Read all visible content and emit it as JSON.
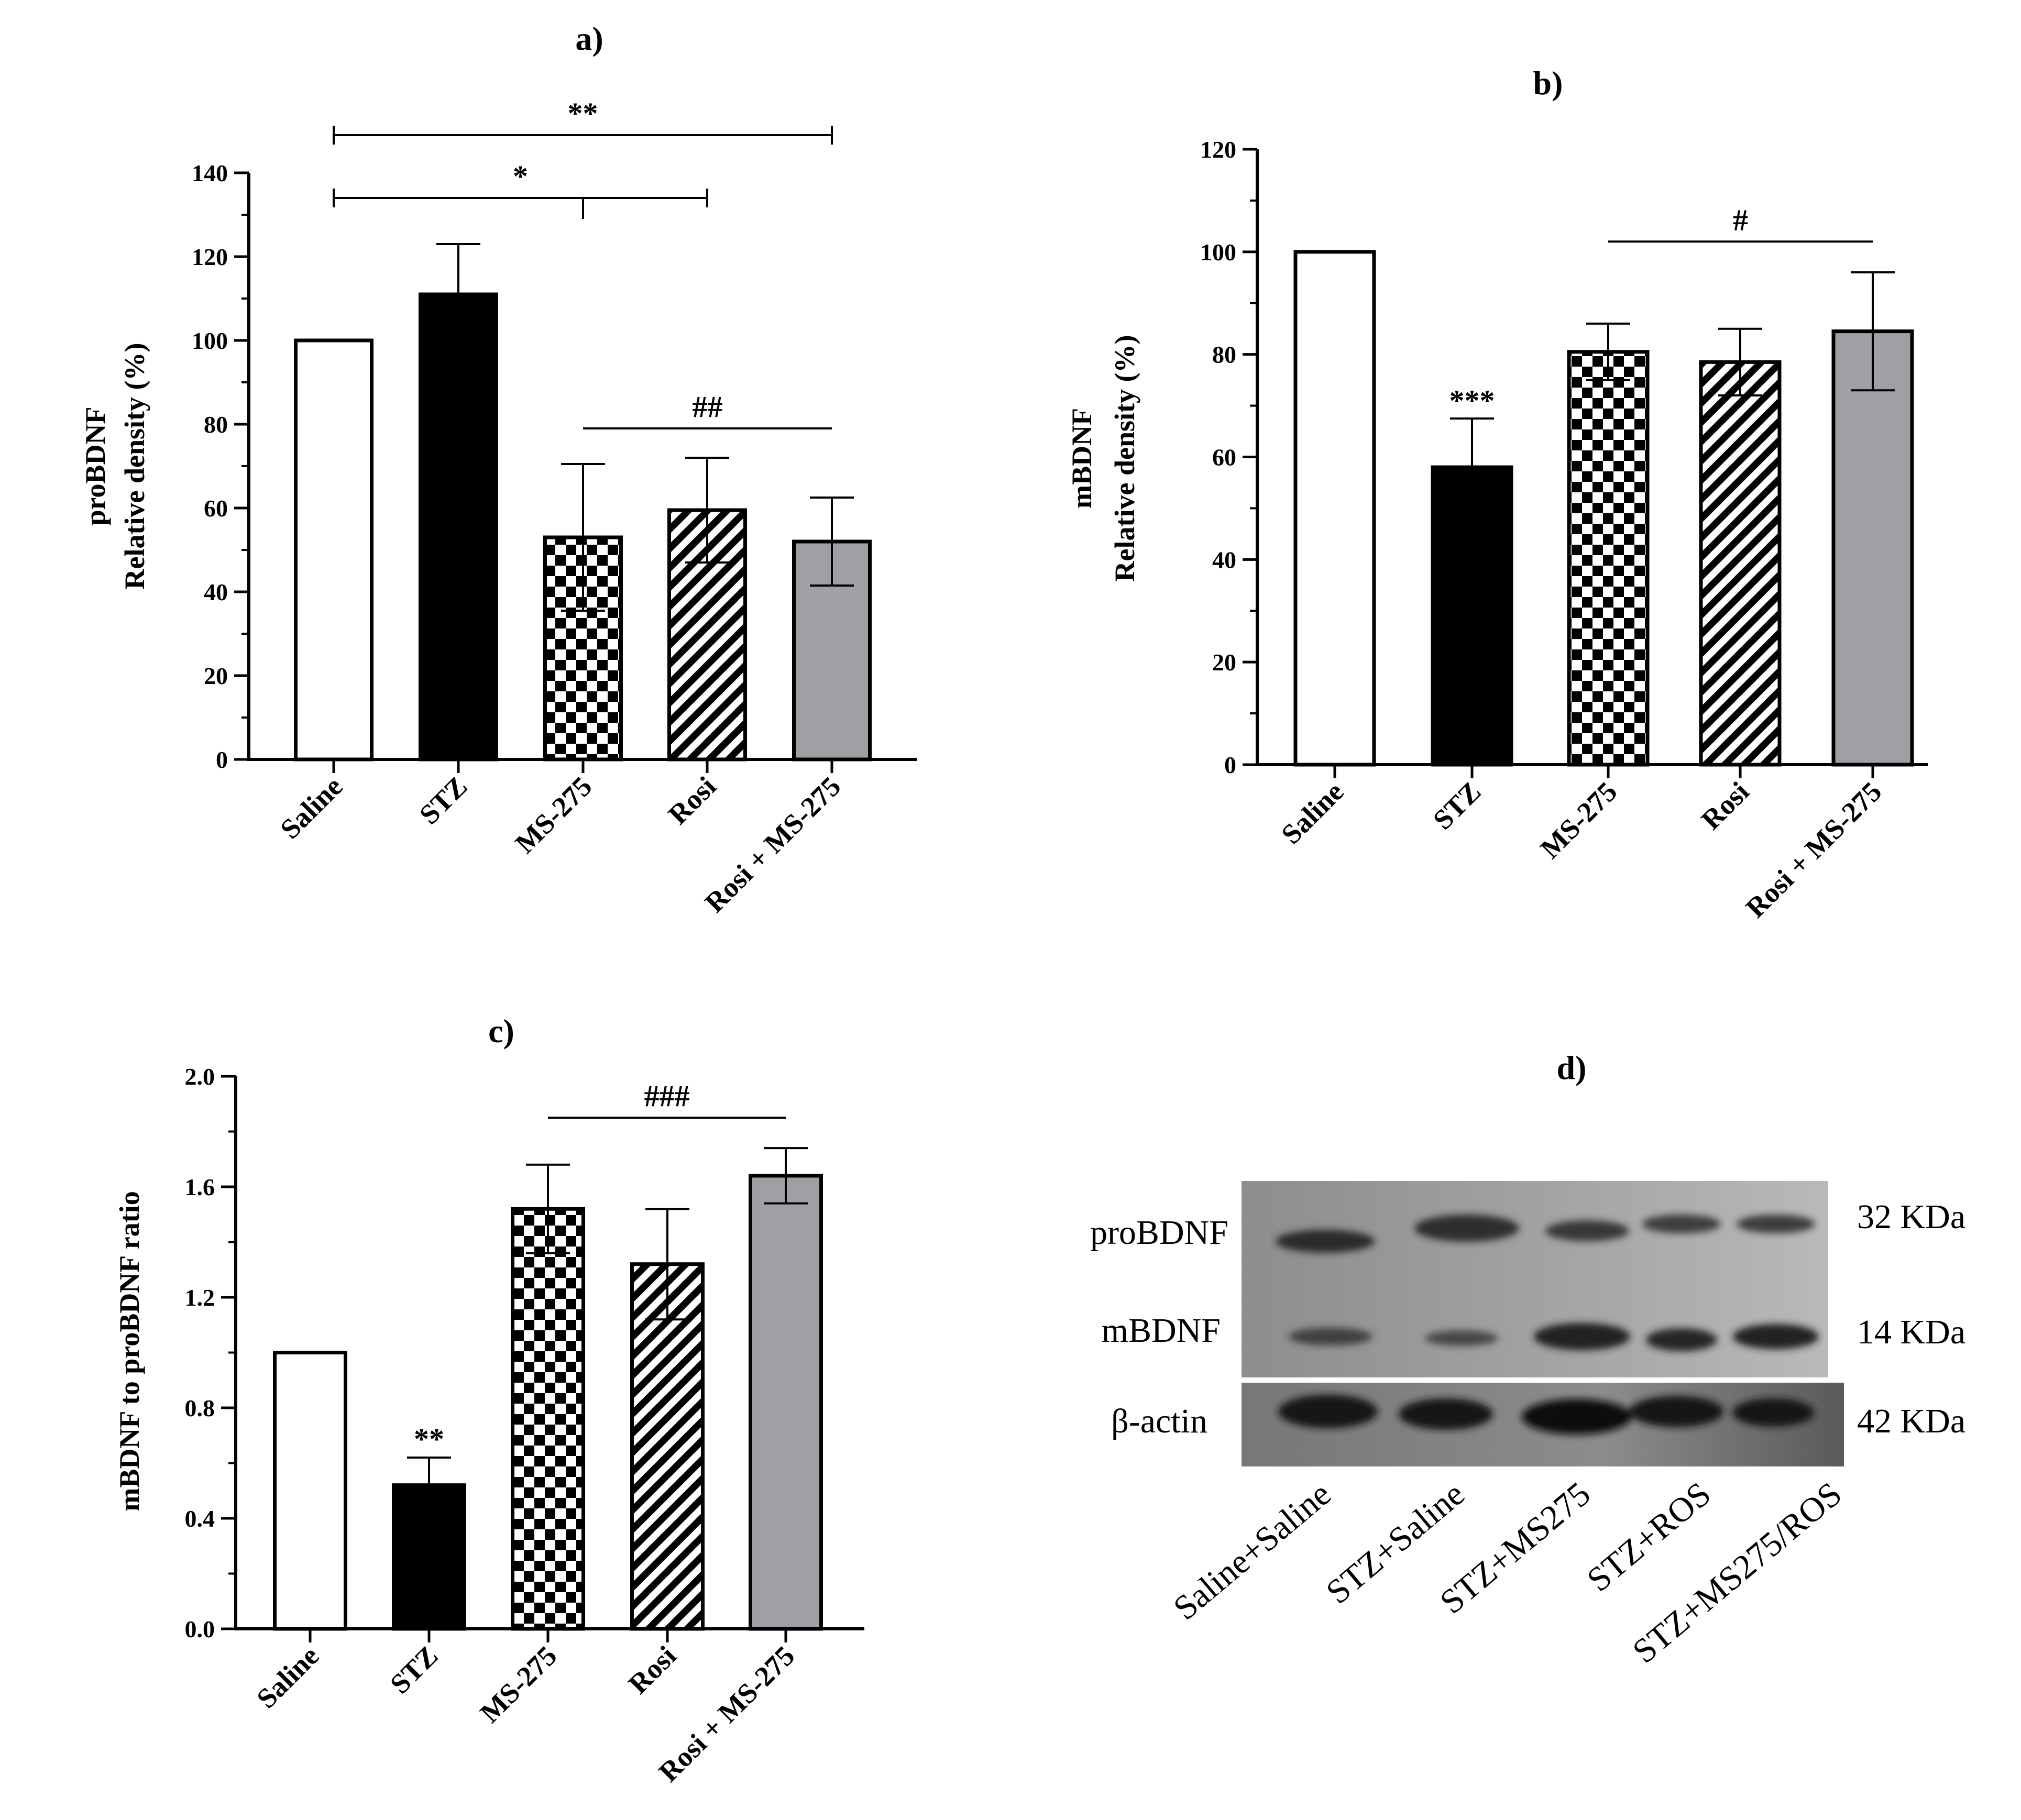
{
  "colors": {
    "saline": "#ffffff",
    "stz": "#000000",
    "rosi_ms275": "#a0a0a4",
    "checker": "#000000",
    "hatch": "#000000"
  },
  "chart_data": [
    {
      "panel": "a)",
      "type": "bar",
      "ylabel_lines": [
        "proBDNF",
        "Relative density (%)"
      ],
      "ylim": [
        0,
        140
      ],
      "yticks": [
        0,
        20,
        40,
        60,
        80,
        100,
        120,
        140
      ],
      "categories": [
        "Saline",
        "STZ",
        "MS-275",
        "Rosi",
        "Rosi + MS-275"
      ],
      "fills": [
        "white",
        "black",
        "checker",
        "hatch",
        "gray"
      ],
      "values": [
        100,
        111,
        53,
        59.5,
        52
      ],
      "errors": [
        0,
        12,
        17.5,
        12.5,
        10.5
      ],
      "annotations": [
        {
          "text": "**",
          "from": 0,
          "to": 4,
          "y": 149
        },
        {
          "text": "*",
          "from": 0,
          "to": 3,
          "y": 134,
          "mid_tick": 2
        },
        {
          "text": "##",
          "from": 2,
          "to": 4,
          "y": 79
        }
      ]
    },
    {
      "panel": "b)",
      "type": "bar",
      "ylabel_lines": [
        "mBDNF",
        "Relative density (%)"
      ],
      "ylim": [
        0,
        120
      ],
      "yticks": [
        0,
        20,
        40,
        60,
        80,
        100,
        120
      ],
      "categories": [
        "Saline",
        "STZ",
        "MS-275",
        "Rosi",
        "Rosi + MS-275"
      ],
      "fills": [
        "white",
        "black",
        "checker",
        "hatch",
        "gray"
      ],
      "values": [
        100,
        58,
        80.5,
        78.5,
        84.5
      ],
      "errors": [
        0,
        9.5,
        5.5,
        6.5,
        11.5
      ],
      "annotations": [
        {
          "text": "***",
          "over": 1,
          "y": 69
        },
        {
          "text": "#",
          "from": 2,
          "to": 4,
          "y": 102
        }
      ]
    },
    {
      "panel": "c)",
      "type": "bar",
      "ylabel_lines": [
        "mBDNF to proBDNF ratio"
      ],
      "ylim": [
        0,
        2.0
      ],
      "yticks": [
        0.0,
        0.4,
        0.8,
        1.2,
        1.6,
        2.0
      ],
      "ytick_labels": [
        "0.0",
        "0.4",
        "0.8",
        "1.2",
        "1.6",
        "2.0"
      ],
      "categories": [
        "Saline",
        "STZ",
        "MS-275",
        "Rosi",
        "Rosi + MS-275"
      ],
      "fills": [
        "white",
        "black",
        "checker",
        "hatch",
        "gray"
      ],
      "values": [
        1.0,
        0.52,
        1.52,
        1.32,
        1.64
      ],
      "errors": [
        0,
        0.1,
        0.16,
        0.2,
        0.1
      ],
      "annotations": [
        {
          "text": "**",
          "over": 1,
          "y": 0.65
        },
        {
          "text": "###",
          "from": 2,
          "to": 4,
          "y": 1.85
        }
      ]
    }
  ],
  "blot": {
    "panel": "d)",
    "rows": [
      "proBDNF",
      "mBDNF",
      "β-actin"
    ],
    "sizes": [
      "32 KDa",
      "14 KDa",
      "42 KDa"
    ],
    "lanes": [
      "Saline+Saline",
      "STZ+Saline",
      "STZ+MS275",
      "STZ+ROS",
      "STZ+MS275/ROS"
    ]
  }
}
